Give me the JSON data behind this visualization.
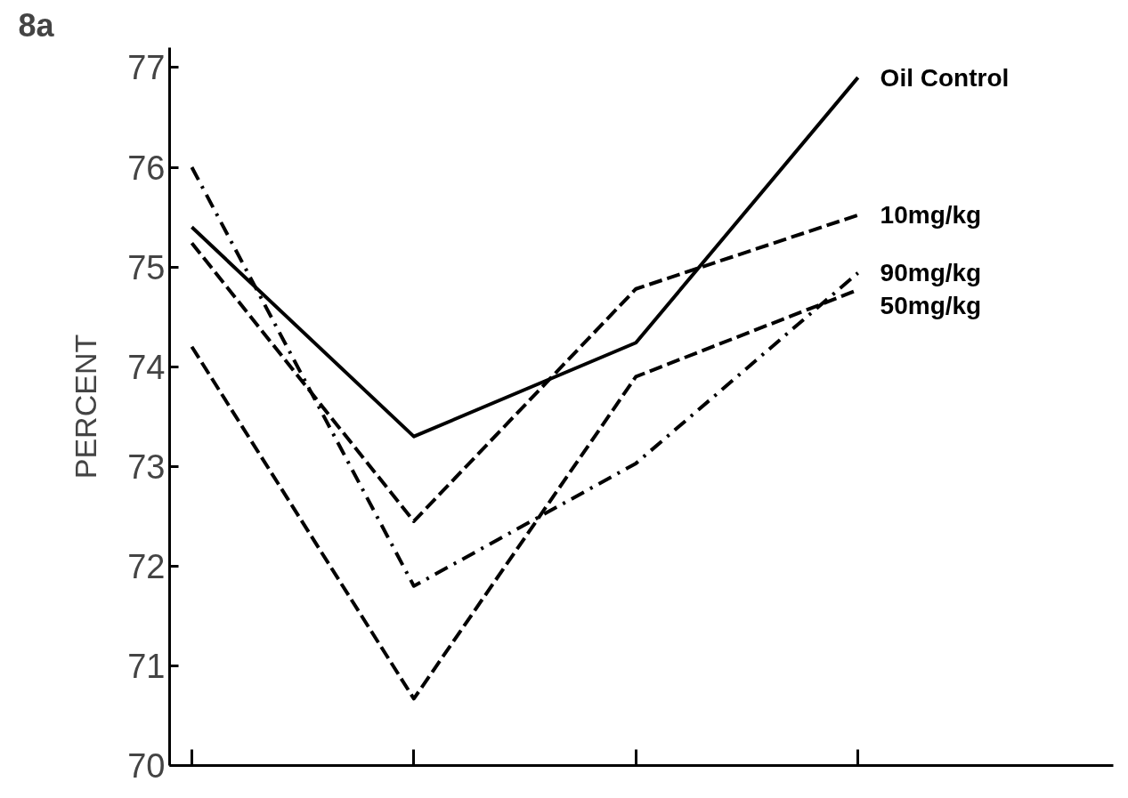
{
  "chart_data": {
    "type": "line",
    "title": "8a",
    "ylabel": "PERCENT",
    "categories": [
      null,
      null,
      null,
      null
    ],
    "ylim": [
      70,
      77.2
    ],
    "yticks": [
      70,
      71,
      72,
      73,
      74,
      75,
      76,
      77
    ],
    "grid": false,
    "marker": "none",
    "series": [
      {
        "name": "Oil Control",
        "color": "#000000",
        "line_style": "solid",
        "values": [
          75.4,
          73.3,
          74.24,
          76.9
        ]
      },
      {
        "name": "10mg/kg",
        "color": "#000000",
        "line_style": "dashed",
        "values": [
          75.24,
          72.45,
          74.78,
          75.52
        ]
      },
      {
        "name": "90mg/kg",
        "color": "#000000",
        "line_style": "dashdot",
        "values": [
          76.0,
          71.8,
          73.03,
          74.94
        ]
      },
      {
        "name": "50mg/kg",
        "color": "#000000",
        "line_style": "dashed",
        "values": [
          74.2,
          70.67,
          73.9,
          74.77
        ]
      }
    ]
  }
}
